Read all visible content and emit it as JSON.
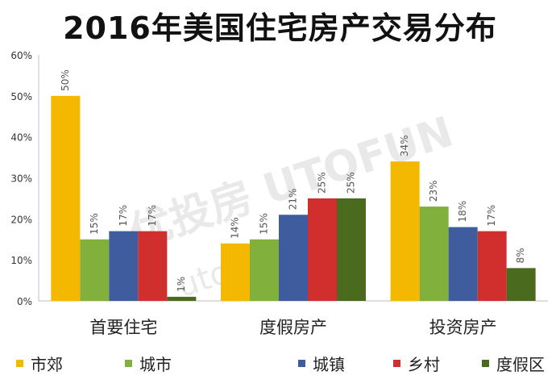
{
  "chart_data": {
    "type": "bar",
    "title": "2016年美国住宅房产交易分布",
    "categories": [
      "首要住宅",
      "度假房产",
      "投资房产"
    ],
    "series": [
      {
        "name": "市郊",
        "color": "#F5B800",
        "values": [
          50,
          14,
          34
        ]
      },
      {
        "name": "城市",
        "color": "#82B03C",
        "values": [
          15,
          15,
          23
        ]
      },
      {
        "name": "城镇",
        "color": "#3E5C9E",
        "values": [
          17,
          21,
          18
        ]
      },
      {
        "name": "乡村",
        "color": "#D12E2E",
        "values": [
          17,
          25,
          17
        ]
      },
      {
        "name": "度假区",
        "color": "#4A6A1E",
        "values": [
          1,
          25,
          8
        ]
      }
    ],
    "y_ticks": [
      "0%",
      "10%",
      "20%",
      "30%",
      "40%",
      "50%",
      "60%"
    ],
    "ylim": [
      0,
      60
    ],
    "value_suffix": "%",
    "legend_position": "bottom",
    "grid": false
  },
  "watermark": {
    "brand": "优投房 UTOFUN",
    "url": "utofun.com"
  }
}
